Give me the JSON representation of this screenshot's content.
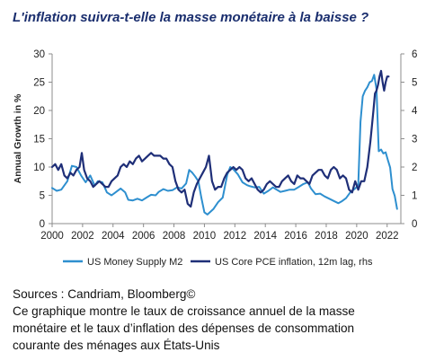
{
  "title": "L'inflation suivra-t-elle la masse monétaire à la baisse ?",
  "caption": {
    "sources": "Sources : Candriam, Bloomberg©",
    "line1": "Ce graphique montre le taux de croissance annuel de la masse",
    "line2": "monétaire et le taux d’inflation des dépenses de consommation",
    "line3": "courante des ménages aux États-Unis"
  },
  "colors": {
    "m2": "#2e8fcf",
    "pce": "#1f2f78",
    "title": "#1a2e6e"
  },
  "chart_data": {
    "type": "line",
    "ylabel": "Annual Growth in %",
    "ylim_left": [
      0,
      30
    ],
    "ylim_right": [
      0,
      6
    ],
    "y_ticks_left": [
      "0",
      "5",
      "10",
      "15",
      "20",
      "25",
      "30"
    ],
    "y_ticks_right": [
      "0",
      "1",
      "2",
      "3",
      "4",
      "5",
      "6"
    ],
    "x_ticks": [
      "2000",
      "2002",
      "2004",
      "2006",
      "2008",
      "2010",
      "2012",
      "2014",
      "2016",
      "2018",
      "2020",
      "2022"
    ],
    "xlim": [
      2000,
      2022.9
    ],
    "grid": false,
    "legend_position": "bottom",
    "series": [
      {
        "name": "US Money Supply M2",
        "axis": "left",
        "x": [
          2000.0,
          2000.3,
          2000.6,
          2001.0,
          2001.3,
          2001.6,
          2001.9,
          2002.2,
          2002.5,
          2002.8,
          2003.0,
          2003.3,
          2003.6,
          2003.9,
          2004.2,
          2004.5,
          2004.8,
          2005.0,
          2005.3,
          2005.6,
          2005.9,
          2006.2,
          2006.5,
          2006.8,
          2007.0,
          2007.3,
          2007.6,
          2007.9,
          2008.2,
          2008.5,
          2008.8,
          2009.0,
          2009.2,
          2009.4,
          2009.6,
          2009.8,
          2010.0,
          2010.2,
          2010.4,
          2010.6,
          2010.9,
          2011.2,
          2011.5,
          2011.7,
          2011.9,
          2012.2,
          2012.5,
          2012.8,
          2013.0,
          2013.3,
          2013.6,
          2013.9,
          2014.2,
          2014.5,
          2014.8,
          2015.0,
          2015.3,
          2015.6,
          2015.9,
          2016.2,
          2016.5,
          2016.8,
          2017.0,
          2017.3,
          2017.6,
          2017.9,
          2018.2,
          2018.5,
          2018.8,
          2019.0,
          2019.3,
          2019.6,
          2019.9,
          2020.1,
          2020.25,
          2020.4,
          2020.55,
          2020.7,
          2020.85,
          2021.0,
          2021.15,
          2021.3,
          2021.45,
          2021.6,
          2021.75,
          2021.9,
          2022.05,
          2022.2,
          2022.35,
          2022.5,
          2022.65
        ],
        "values": [
          6.3,
          5.8,
          6.0,
          7.5,
          10.2,
          10.0,
          8.5,
          7.3,
          8.5,
          6.7,
          7.5,
          7.3,
          5.5,
          5.0,
          5.6,
          6.2,
          5.5,
          4.2,
          4.1,
          4.4,
          4.1,
          4.6,
          5.1,
          5.0,
          5.6,
          6.1,
          5.8,
          5.9,
          6.4,
          6.2,
          7.1,
          9.5,
          9.0,
          8.3,
          7.5,
          4.6,
          2.0,
          1.6,
          2.1,
          2.6,
          3.8,
          4.6,
          8.6,
          10.0,
          9.6,
          8.7,
          7.3,
          6.8,
          6.6,
          6.4,
          6.5,
          5.3,
          5.8,
          6.4,
          5.9,
          5.6,
          5.8,
          6.0,
          6.0,
          6.5,
          7.0,
          7.3,
          6.2,
          5.2,
          5.3,
          4.8,
          4.4,
          4.0,
          3.6,
          3.9,
          4.5,
          5.6,
          6.2,
          6.8,
          18.0,
          22.5,
          23.5,
          24.1,
          25.0,
          25.2,
          26.3,
          23.8,
          12.8,
          13.1,
          12.4,
          12.6,
          11.2,
          9.9,
          6.1,
          4.9,
          2.6
        ]
      },
      {
        "name": "US Core PCE inflation, 12m lag, rhs",
        "axis": "right",
        "x": [
          2000.0,
          2000.2,
          2000.4,
          2000.6,
          2000.8,
          2001.0,
          2001.2,
          2001.4,
          2001.6,
          2001.8,
          2001.95,
          2002.1,
          2002.3,
          2002.5,
          2002.7,
          2002.9,
          2003.1,
          2003.3,
          2003.5,
          2003.7,
          2003.9,
          2004.1,
          2004.3,
          2004.5,
          2004.7,
          2004.9,
          2005.1,
          2005.3,
          2005.5,
          2005.7,
          2005.9,
          2006.1,
          2006.3,
          2006.5,
          2006.7,
          2006.9,
          2007.1,
          2007.3,
          2007.5,
          2007.7,
          2007.9,
          2008.1,
          2008.3,
          2008.5,
          2008.7,
          2008.9,
          2009.1,
          2009.3,
          2009.5,
          2009.7,
          2009.9,
          2010.1,
          2010.3,
          2010.5,
          2010.7,
          2010.9,
          2011.1,
          2011.3,
          2011.5,
          2011.7,
          2011.9,
          2012.1,
          2012.3,
          2012.5,
          2012.7,
          2012.9,
          2013.1,
          2013.3,
          2013.5,
          2013.7,
          2013.9,
          2014.1,
          2014.3,
          2014.5,
          2014.7,
          2014.9,
          2015.1,
          2015.3,
          2015.5,
          2015.7,
          2015.9,
          2016.1,
          2016.3,
          2016.5,
          2016.7,
          2016.9,
          2017.1,
          2017.3,
          2017.5,
          2017.7,
          2017.9,
          2018.1,
          2018.3,
          2018.5,
          2018.7,
          2018.9,
          2019.1,
          2019.3,
          2019.5,
          2019.7,
          2019.9,
          2020.1,
          2020.3,
          2020.5,
          2020.7,
          2020.9,
          2021.1,
          2021.2,
          2021.3,
          2021.4,
          2021.5,
          2021.6,
          2021.7,
          2021.8,
          2021.9,
          2022.0,
          2022.1
        ],
        "values": [
          2.0,
          2.1,
          1.9,
          2.1,
          1.7,
          1.6,
          1.8,
          1.7,
          1.9,
          2.0,
          2.5,
          1.9,
          1.6,
          1.5,
          1.3,
          1.4,
          1.5,
          1.4,
          1.3,
          1.3,
          1.5,
          1.6,
          1.7,
          2.0,
          2.1,
          2.0,
          2.2,
          2.1,
          2.3,
          2.4,
          2.2,
          2.3,
          2.4,
          2.5,
          2.4,
          2.4,
          2.4,
          2.3,
          2.3,
          2.1,
          2.0,
          1.5,
          1.2,
          1.1,
          1.2,
          0.7,
          0.6,
          1.1,
          1.4,
          1.6,
          1.8,
          2.0,
          2.4,
          1.5,
          1.2,
          1.3,
          1.3,
          1.6,
          1.8,
          1.9,
          2.0,
          1.9,
          2.0,
          1.9,
          1.6,
          1.5,
          1.6,
          1.4,
          1.2,
          1.1,
          1.2,
          1.4,
          1.5,
          1.4,
          1.3,
          1.3,
          1.5,
          1.6,
          1.7,
          1.5,
          1.4,
          1.7,
          1.6,
          1.6,
          1.5,
          1.4,
          1.7,
          1.8,
          1.9,
          1.9,
          1.7,
          1.6,
          1.9,
          2.0,
          1.9,
          1.6,
          1.7,
          1.6,
          1.2,
          1.1,
          1.5,
          1.2,
          1.5,
          1.5,
          2.0,
          2.9,
          4.0,
          4.6,
          4.7,
          4.9,
          5.2,
          5.4,
          5.0,
          4.7,
          5.0,
          5.2,
          5.2
        ]
      }
    ]
  }
}
